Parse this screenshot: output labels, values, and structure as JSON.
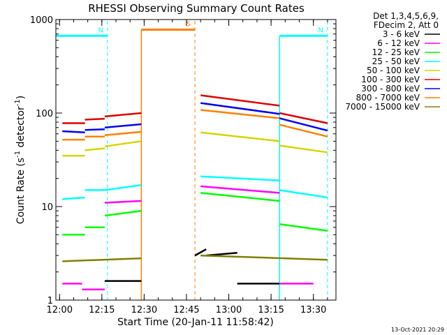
{
  "chart_data": {
    "type": "line",
    "title": "RHESSI Observing Summary Count Rates",
    "xlabel": "Start Time (20-Jan-11 11:58:42)",
    "ylabel": "Count Rate (s⁻¹ detector⁻¹)",
    "ylabel_main": "Count Rate (s",
    "ylabel_sup1": "-1",
    "ylabel_mid": " detector",
    "ylabel_sup2": "-1",
    "ylabel_end": ")",
    "y_scale": "log",
    "ylim": [
      1,
      1000
    ],
    "xlim": [
      "11:58:42",
      "13:38:00"
    ],
    "x_ticks": [
      "12:00",
      "12:15",
      "12:30",
      "12:45",
      "13:00",
      "13:15",
      "13:30"
    ],
    "y_ticks": [
      "1",
      "10",
      "100",
      "1000"
    ],
    "grid": false,
    "legend_title_line1": "Det 1,3,4,5,6,9,",
    "legend_title_line2": "FDecim 2, Att 0",
    "legend_position": "right",
    "footer_date": "13-Oct-2021 20:29",
    "data_gap": [
      "12:29",
      "12:48"
    ],
    "series": [
      {
        "name": "3 - 6 keV",
        "color": "#000000",
        "segments": [
          {
            "x": [
              "12:16",
              "12:29"
            ],
            "y": [
              1.6,
              1.6
            ]
          },
          {
            "x": [
              "12:48",
              "12:52"
            ],
            "y": [
              3.0,
              3.5
            ]
          },
          {
            "x": [
              "12:52",
              "13:03"
            ],
            "y": [
              3.0,
              3.2
            ]
          },
          {
            "x": [
              "13:03",
              "13:18"
            ],
            "y": [
              1.5,
              1.5
            ]
          }
        ]
      },
      {
        "name": "6 - 12 keV",
        "color": "#ff00ff",
        "segments": [
          {
            "x": [
              "12:01",
              "12:08"
            ],
            "y": [
              1.5,
              1.5
            ]
          },
          {
            "x": [
              "12:08",
              "12:16"
            ],
            "y": [
              1.3,
              1.3
            ]
          },
          {
            "x": [
              "12:16",
              "12:29"
            ],
            "y": [
              11.0,
              11.5
            ]
          },
          {
            "x": [
              "12:50",
              "13:18"
            ],
            "y": [
              16.5,
              14.0
            ]
          },
          {
            "x": [
              "13:18",
              "13:30"
            ],
            "y": [
              1.5,
              1.5
            ]
          }
        ]
      },
      {
        "name": "12 - 25 keV",
        "color": "#00ff00",
        "segments": [
          {
            "x": [
              "12:01",
              "12:09"
            ],
            "y": [
              5.0,
              5.0
            ]
          },
          {
            "x": [
              "12:09",
              "12:16"
            ],
            "y": [
              6.0,
              6.0
            ]
          },
          {
            "x": [
              "12:16",
              "12:29"
            ],
            "y": [
              8.0,
              9.0
            ]
          },
          {
            "x": [
              "12:50",
              "13:18"
            ],
            "y": [
              14.0,
              11.5
            ]
          },
          {
            "x": [
              "13:18",
              "13:35"
            ],
            "y": [
              6.5,
              5.5
            ]
          }
        ]
      },
      {
        "name": "25 - 50 keV",
        "color": "#00ffff",
        "segments": [
          {
            "x": [
              "12:01",
              "12:09"
            ],
            "y": [
              12.0,
              12.5
            ]
          },
          {
            "x": [
              "12:09",
              "12:16"
            ],
            "y": [
              15.0,
              15.0
            ]
          },
          {
            "x": [
              "12:16",
              "12:29"
            ],
            "y": [
              15.0,
              17.0
            ]
          },
          {
            "x": [
              "12:50",
              "13:18"
            ],
            "y": [
              21.0,
              19.0
            ]
          },
          {
            "x": [
              "13:18",
              "13:35"
            ],
            "y": [
              15.0,
              12.5
            ]
          }
        ]
      },
      {
        "name": "50 - 100 keV",
        "color": "#d4d400",
        "segments": [
          {
            "x": [
              "12:01",
              "12:09"
            ],
            "y": [
              35.0,
              35.0
            ]
          },
          {
            "x": [
              "12:09",
              "12:16"
            ],
            "y": [
              40.0,
              42.0
            ]
          },
          {
            "x": [
              "12:16",
              "12:29"
            ],
            "y": [
              44.0,
              50.0
            ]
          },
          {
            "x": [
              "12:50",
              "13:18"
            ],
            "y": [
              62.0,
              50.0
            ]
          },
          {
            "x": [
              "13:18",
              "13:35"
            ],
            "y": [
              45.0,
              38.0
            ]
          }
        ]
      },
      {
        "name": "100 - 300 keV",
        "color": "#dd0000",
        "segments": [
          {
            "x": [
              "12:01",
              "12:09"
            ],
            "y": [
              78.0,
              78.0
            ]
          },
          {
            "x": [
              "12:09",
              "12:16"
            ],
            "y": [
              85.0,
              87.0
            ]
          },
          {
            "x": [
              "12:16",
              "12:29"
            ],
            "y": [
              92.0,
              100.0
            ]
          },
          {
            "x": [
              "12:50",
              "13:18"
            ],
            "y": [
              155.0,
              120.0
            ]
          },
          {
            "x": [
              "13:18",
              "13:35"
            ],
            "y": [
              100.0,
              78.0
            ]
          }
        ]
      },
      {
        "name": "300 - 800 keV",
        "color": "#0000ee",
        "segments": [
          {
            "x": [
              "12:01",
              "12:09"
            ],
            "y": [
              64.0,
              62.0
            ]
          },
          {
            "x": [
              "12:09",
              "12:16"
            ],
            "y": [
              66.0,
              67.0
            ]
          },
          {
            "x": [
              "12:16",
              "12:29"
            ],
            "y": [
              70.0,
              76.0
            ]
          },
          {
            "x": [
              "12:50",
              "13:18"
            ],
            "y": [
              128.0,
              98.0
            ]
          },
          {
            "x": [
              "13:18",
              "13:35"
            ],
            "y": [
              88.0,
              65.0
            ]
          }
        ]
      },
      {
        "name": "800 - 7000 keV",
        "color": "#ff8000",
        "segments": [
          {
            "x": [
              "12:01",
              "12:09"
            ],
            "y": [
              52.0,
              52.0
            ]
          },
          {
            "x": [
              "12:09",
              "12:16"
            ],
            "y": [
              56.0,
              56.0
            ]
          },
          {
            "x": [
              "12:16",
              "12:29"
            ],
            "y": [
              58.0,
              63.0
            ]
          },
          {
            "x": [
              "12:29",
              "12:48"
            ],
            "y": [
              780.0,
              780.0
            ]
          },
          {
            "x": [
              "12:50",
              "13:18"
            ],
            "y": [
              108.0,
              88.0
            ]
          },
          {
            "x": [
              "13:18",
              "13:35"
            ],
            "y": [
              75.0,
              56.0
            ]
          }
        ]
      },
      {
        "name": "7000 - 15000 keV",
        "color": "#808000",
        "segments": [
          {
            "x": [
              "12:01",
              "12:29"
            ],
            "y": [
              2.6,
              2.8
            ]
          },
          {
            "x": [
              "12:29",
              "12:29"
            ],
            "y": [
              4.5,
              4.5
            ]
          },
          {
            "x": [
              "12:50",
              "13:35"
            ],
            "y": [
              3.0,
              2.7
            ]
          }
        ]
      }
    ],
    "annotations": [
      {
        "text": "N",
        "color": "#00ffff",
        "x_from": "11:58:42",
        "x_to": "12:17",
        "y": 670
      },
      {
        "text": "N",
        "color": "#00ffff",
        "x_from": "13:18",
        "x_to": "13:35",
        "y": 670
      },
      {
        "text": "S",
        "color": "#ff8000",
        "x_from": "12:29",
        "x_to": "12:48",
        "y": 780
      }
    ]
  }
}
